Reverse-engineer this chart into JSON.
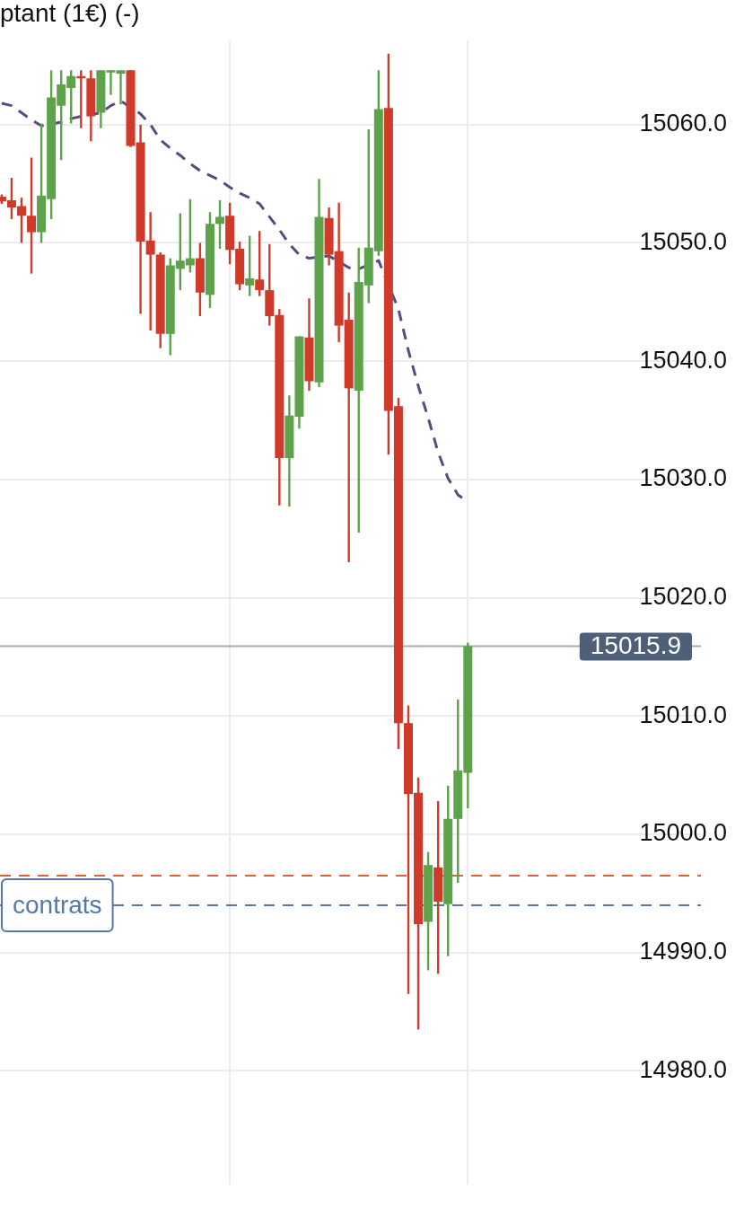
{
  "chart_data": {
    "type": "candlestick",
    "title": "ptant (1€) (-)",
    "categories": [
      null,
      null,
      null,
      null,
      null,
      null,
      null,
      null,
      null,
      null,
      null,
      null,
      null,
      null,
      null,
      null,
      null,
      null,
      null,
      null,
      null,
      null,
      null,
      null,
      null,
      null,
      null,
      null,
      null,
      null,
      null,
      null,
      null,
      null,
      null,
      null,
      null,
      null,
      null,
      null,
      null,
      null,
      null,
      null,
      null,
      null,
      null,
      null
    ],
    "ohlc": [
      [
        15053.9,
        15054.1,
        15053.3,
        15053.5
      ],
      [
        15053.6,
        15055.5,
        15052.0,
        15053.0
      ],
      [
        15053.1,
        15053.8,
        15050.0,
        15052.3
      ],
      [
        15052.3,
        15057.2,
        15047.4,
        15050.9
      ],
      [
        15050.9,
        15060.1,
        15050.0,
        15054.0
      ],
      [
        15053.7,
        15064.6,
        15052.0,
        15062.3
      ],
      [
        15061.6,
        15064.6,
        15057.0,
        15063.4
      ],
      [
        15063.1,
        15064.6,
        15060.1,
        15064.1
      ],
      [
        15064.1,
        15064.6,
        15059.7,
        15063.9
      ],
      [
        15063.9,
        15064.6,
        15058.6,
        15060.7
      ],
      [
        15061.0,
        15064.6,
        15059.7,
        15064.6
      ],
      [
        15064.4,
        15064.6,
        15062.5,
        15064.6
      ],
      [
        15064.3,
        15064.6,
        15061.7,
        15064.6
      ],
      [
        15064.6,
        15064.6,
        15058.1,
        15058.2
      ],
      [
        15058.5,
        15060.0,
        15044.0,
        15050.1
      ],
      [
        15050.2,
        15052.6,
        15042.6,
        15049.0
      ],
      [
        15049.0,
        15049.2,
        15041.1,
        15042.3
      ],
      [
        15042.3,
        15048.7,
        15040.5,
        15048.1
      ],
      [
        15047.8,
        15052.5,
        15046.0,
        15048.5
      ],
      [
        15048.1,
        15053.7,
        15047.5,
        15048.7
      ],
      [
        15048.7,
        15050.0,
        15043.8,
        15045.8
      ],
      [
        15045.6,
        15052.6,
        15044.5,
        15051.6
      ],
      [
        15051.6,
        15053.6,
        15049.5,
        15052.2
      ],
      [
        15052.3,
        15053.4,
        15048.2,
        15049.4
      ],
      [
        15049.5,
        15050.1,
        15046.0,
        15046.5
      ],
      [
        15046.4,
        15050.6,
        15045.5,
        15047.0
      ],
      [
        15046.9,
        15051.0,
        15045.5,
        15046.0
      ],
      [
        15046.0,
        15049.9,
        15043.0,
        15043.8
      ],
      [
        15043.9,
        15044.4,
        15027.8,
        15031.8
      ],
      [
        15031.8,
        15037.1,
        15027.7,
        15035.4
      ],
      [
        15035.3,
        15042.1,
        15034.3,
        15042.1
      ],
      [
        15042.0,
        15045.3,
        15037.5,
        15038.3
      ],
      [
        15038.2,
        15055.4,
        15037.8,
        15052.2
      ],
      [
        15052.1,
        15053.0,
        15048.1,
        15049.0
      ],
      [
        15049.3,
        15053.4,
        15041.6,
        15043.0
      ],
      [
        15043.5,
        15045.8,
        15023.0,
        15037.7
      ],
      [
        15037.5,
        15049.6,
        15025.5,
        15046.7
      ],
      [
        15046.4,
        15059.6,
        15044.9,
        15049.6
      ],
      [
        15049.3,
        15064.6,
        15048.9,
        15061.3
      ],
      [
        15061.4,
        15066.0,
        15032.1,
        15035.8
      ],
      [
        15036.2,
        15036.9,
        15007.2,
        15009.4
      ],
      [
        15009.4,
        15010.9,
        14986.5,
        15003.4
      ],
      [
        15003.5,
        15004.8,
        14983.5,
        14992.4
      ],
      [
        14992.6,
        14998.5,
        14988.5,
        14997.4
      ],
      [
        14997.2,
        15002.8,
        14988.2,
        14994.3
      ],
      [
        14994.1,
        15004.1,
        14989.7,
        15001.3
      ],
      [
        15001.3,
        15011.4,
        14995.9,
        15005.4
      ],
      [
        15005.2,
        15016.2,
        15002.2,
        15015.9
      ]
    ],
    "colors": [
      "#cf3a2b",
      "#cf3a2b",
      "#cf3a2b",
      "#cf3a2b",
      "#5ea34b",
      "#5ea34b",
      "#5ea34b",
      "#5ea34b",
      "#cf3a2b",
      "#cf3a2b",
      "#5ea34b",
      "#5ea34b",
      "#5ea34b",
      "#cf3a2b",
      "#cf3a2b",
      "#cf3a2b",
      "#cf3a2b",
      "#5ea34b",
      "#5ea34b",
      "#5ea34b",
      "#cf3a2b",
      "#5ea34b",
      "#5ea34b",
      "#cf3a2b",
      "#cf3a2b",
      "#5ea34b",
      "#cf3a2b",
      "#cf3a2b",
      "#cf3a2b",
      "#5ea34b",
      "#5ea34b",
      "#cf3a2b",
      "#5ea34b",
      "#cf3a2b",
      "#cf3a2b",
      "#cf3a2b",
      "#5ea34b",
      "#5ea34b",
      "#5ea34b",
      "#cf3a2b",
      "#cf3a2b",
      "#cf3a2b",
      "#cf3a2b",
      "#5ea34b",
      "#cf3a2b",
      "#5ea34b",
      "#5ea34b",
      "#5ea34b"
    ],
    "series": [
      {
        "type": "line",
        "color": "#5a4a82",
        "line_style": "dashed",
        "values": [
          15061.8,
          15061.6,
          15061.0,
          15060.4,
          15059.9,
          null,
          15060.2,
          15060.5,
          15060.7,
          null,
          15061.0,
          15061.6,
          15062.0,
          null,
          15060.9,
          15060.0,
          15058.7,
          15058.0,
          15057.4,
          15056.7,
          15056.1,
          15055.7,
          15055.3,
          15054.7,
          15054.2,
          15053.8,
          15053.3,
          15052.2,
          15051.1,
          15049.9,
          15049.0,
          15048.7,
          null,
          15048.9,
          null,
          15047.9,
          15047.8,
          null,
          15048.5,
          null,
          15044.4,
          15040.9,
          15037.9,
          15035.2,
          15032.3,
          15030.1,
          15028.7,
          15028.1
        ]
      }
    ],
    "ylim": [
      14970.4,
      15067.1
    ],
    "yticks": [
      {
        "value": 14980,
        "label": "14980.0"
      },
      {
        "value": 14990,
        "label": "14990.0"
      },
      {
        "value": 15000,
        "label": "15000.0"
      },
      {
        "value": 15010,
        "label": "15010.0"
      },
      {
        "value": 15020,
        "label": "15020.0"
      },
      {
        "value": 15030,
        "label": "15030.0"
      },
      {
        "value": 15040,
        "label": "15040.0"
      },
      {
        "value": 15050,
        "label": "15050.0"
      },
      {
        "value": 15060,
        "label": "15060.0"
      }
    ],
    "grid": true,
    "tick_labels": "y",
    "ref_lines": [
      {
        "axis": "y",
        "value": 15015.9,
        "label": "15015.9",
        "color": "#a3acbb",
        "line_style": "solid"
      },
      {
        "axis": "y",
        "value": 14996.5,
        "color": "#e0632f",
        "line_style": "dashed"
      },
      {
        "axis": "y",
        "value": 14994.0,
        "label": "contrats",
        "color": "#5479a8",
        "line_style": "dashed"
      }
    ]
  }
}
